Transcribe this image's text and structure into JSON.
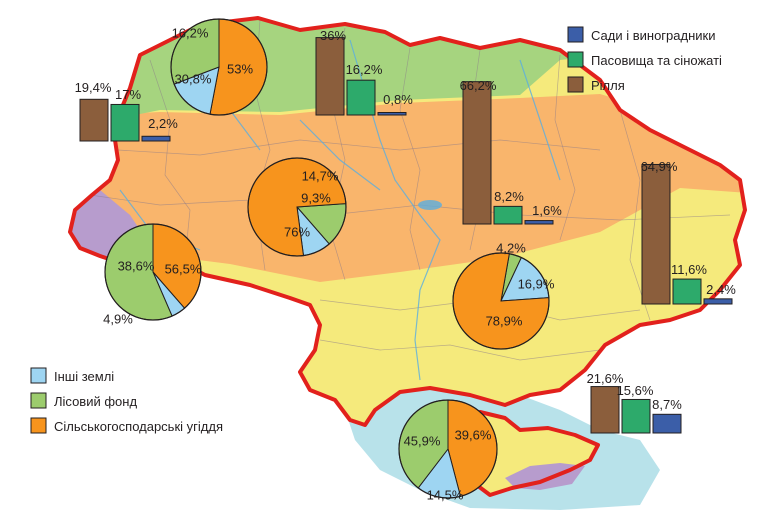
{
  "colors": {
    "sea": "#b8e2ea",
    "border": "#e2211c",
    "zone_north": "#a6d47f",
    "zone_middle": "#f9b56c",
    "zone_south": "#f5ea7c",
    "zone_mountains": "#b79ccd",
    "inner_lines": "#8a7a8a",
    "rivers": "#5aaee0",
    "orchards": "#3b5ea8",
    "pastures": "#2daa6b",
    "arable": "#8b5e3c",
    "other_land": "#9ed5f2",
    "forest": "#9ccc6d",
    "agricultural": "#f7941d",
    "bar_stroke": "#231f20"
  },
  "legend_bars": {
    "items": [
      {
        "key": "orchards",
        "label": "Сади і виноградники"
      },
      {
        "key": "pastures",
        "label": "Пасовища та сіножаті"
      },
      {
        "key": "arable",
        "label": "Рілля"
      }
    ]
  },
  "legend_pies": {
    "items": [
      {
        "key": "other_land",
        "label": "Інші землі"
      },
      {
        "key": "forest",
        "label": "Лісовий фонд"
      },
      {
        "key": "agricultural",
        "label": "Сільськогосподарські угіддя"
      }
    ]
  },
  "chart_data": [
    {
      "type": "pie",
      "id": "pie-polissia",
      "slices": [
        {
          "key": "agricultural",
          "value": 53,
          "label": "53%"
        },
        {
          "key": "forest",
          "value": 30.8,
          "label": "30,8%"
        },
        {
          "key": "other_land",
          "value": 16.2,
          "label": "16,2%"
        }
      ]
    },
    {
      "type": "pie",
      "id": "pie-carpathians",
      "slices": [
        {
          "key": "agricultural",
          "value": 38.6,
          "label": "38,6%"
        },
        {
          "key": "forest",
          "value": 56.5,
          "label": "56,5%"
        },
        {
          "key": "other_land",
          "value": 4.9,
          "label": "4,9%"
        }
      ]
    },
    {
      "type": "pie",
      "id": "pie-forest-steppe",
      "slices": [
        {
          "key": "agricultural",
          "value": 76,
          "label": "76%"
        },
        {
          "key": "forest",
          "value": 14.7,
          "label": "14,7%"
        },
        {
          "key": "other_land",
          "value": 9.3,
          "label": "9,3%"
        }
      ]
    },
    {
      "type": "pie",
      "id": "pie-steppe",
      "slices": [
        {
          "key": "agricultural",
          "value": 78.9,
          "label": "78,9%"
        },
        {
          "key": "forest",
          "value": 4.2,
          "label": "4,2%"
        },
        {
          "key": "other_land",
          "value": 16.9,
          "label": "16,9%"
        }
      ]
    },
    {
      "type": "pie",
      "id": "pie-crimea",
      "slices": [
        {
          "key": "agricultural",
          "value": 45.9,
          "label": "45,9%"
        },
        {
          "key": "forest",
          "value": 39.6,
          "label": "39,6%"
        },
        {
          "key": "other_land",
          "value": 14.5,
          "label": "14,5%"
        }
      ]
    },
    {
      "type": "bar",
      "id": "bars-carpathians",
      "categories": [
        "arable",
        "pastures",
        "orchards"
      ],
      "values": [
        19.4,
        17,
        2.2
      ],
      "labels": [
        "19,4%",
        "17%",
        "2,2%"
      ]
    },
    {
      "type": "bar",
      "id": "bars-polissia",
      "categories": [
        "arable",
        "pastures",
        "orchards"
      ],
      "values": [
        36,
        16.2,
        0.8
      ],
      "labels": [
        "36%",
        "16,2%",
        "0,8%"
      ]
    },
    {
      "type": "bar",
      "id": "bars-forest-steppe",
      "categories": [
        "arable",
        "pastures",
        "orchards"
      ],
      "values": [
        66.2,
        8.2,
        1.6
      ],
      "labels": [
        "66,2%",
        "8,2%",
        "1,6%"
      ]
    },
    {
      "type": "bar",
      "id": "bars-steppe",
      "categories": [
        "arable",
        "pastures",
        "orchards"
      ],
      "values": [
        64.9,
        11.6,
        2.4
      ],
      "labels": [
        "64,9%",
        "11,6%",
        "2,4%"
      ]
    },
    {
      "type": "bar",
      "id": "bars-crimea",
      "categories": [
        "arable",
        "pastures",
        "orchards"
      ],
      "values": [
        21.6,
        15.6,
        8.7
      ],
      "labels": [
        "21,6%",
        "15,6%",
        "8,7%"
      ]
    }
  ]
}
